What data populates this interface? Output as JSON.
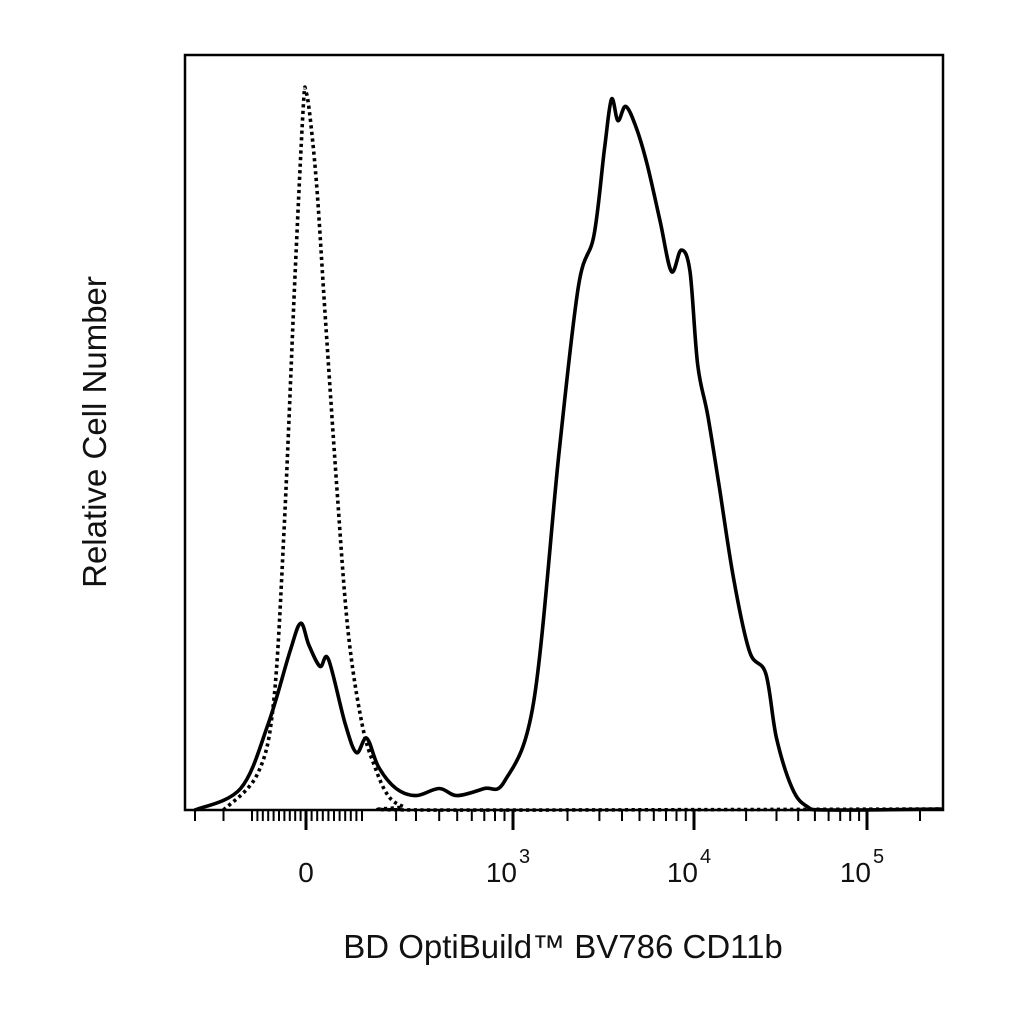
{
  "chart_data": {
    "type": "line",
    "xlabel": "BD OptiBuild™  BV786 CD11b",
    "ylabel": "Relative Cell Number",
    "x_scale": "biexponential",
    "x_ticks": [
      {
        "value": 0,
        "label": "0",
        "exp": ""
      },
      {
        "value": 1000,
        "label": "10",
        "exp": "3"
      },
      {
        "value": 10000,
        "label": "10",
        "exp": "4"
      },
      {
        "value": 100000,
        "label": "10",
        "exp": "5"
      }
    ],
    "ylim": [
      0,
      100
    ],
    "grid": false,
    "legend": "none",
    "series": [
      {
        "style": "dotted",
        "color": "#000000",
        "points": [
          [
            -150,
            0
          ],
          [
            -90,
            5
          ],
          [
            -60,
            15
          ],
          [
            -40,
            40
          ],
          [
            -20,
            75
          ],
          [
            -5,
            98
          ],
          [
            0,
            100
          ],
          [
            8,
            96
          ],
          [
            20,
            86
          ],
          [
            35,
            68
          ],
          [
            55,
            45
          ],
          [
            75,
            25
          ],
          [
            100,
            12
          ],
          [
            130,
            6
          ],
          [
            170,
            2
          ],
          [
            230,
            0.5
          ],
          [
            320,
            0
          ]
        ]
      },
      {
        "style": "solid",
        "color": "#000000",
        "points": [
          [
            -200,
            0
          ],
          [
            -120,
            3
          ],
          [
            -70,
            12
          ],
          [
            -30,
            22
          ],
          [
            -10,
            26
          ],
          [
            5,
            23
          ],
          [
            25,
            20
          ],
          [
            40,
            21
          ],
          [
            70,
            12
          ],
          [
            90,
            8
          ],
          [
            110,
            10
          ],
          [
            140,
            6
          ],
          [
            200,
            3
          ],
          [
            300,
            2
          ],
          [
            400,
            3
          ],
          [
            500,
            2
          ],
          [
            700,
            3
          ],
          [
            900,
            4
          ],
          [
            1300,
            15
          ],
          [
            1800,
            50
          ],
          [
            2300,
            73
          ],
          [
            2800,
            80
          ],
          [
            3200,
            92
          ],
          [
            3500,
            99
          ],
          [
            3800,
            96
          ],
          [
            4200,
            98
          ],
          [
            4800,
            95
          ],
          [
            5500,
            90
          ],
          [
            6500,
            82
          ],
          [
            7500,
            75
          ],
          [
            8500,
            78
          ],
          [
            9500,
            75
          ],
          [
            10500,
            62
          ],
          [
            12000,
            55
          ],
          [
            14000,
            45
          ],
          [
            17000,
            32
          ],
          [
            21000,
            22
          ],
          [
            26000,
            19
          ],
          [
            30000,
            10
          ],
          [
            37000,
            3
          ],
          [
            45000,
            0.5
          ],
          [
            60000,
            0
          ]
        ]
      }
    ]
  }
}
